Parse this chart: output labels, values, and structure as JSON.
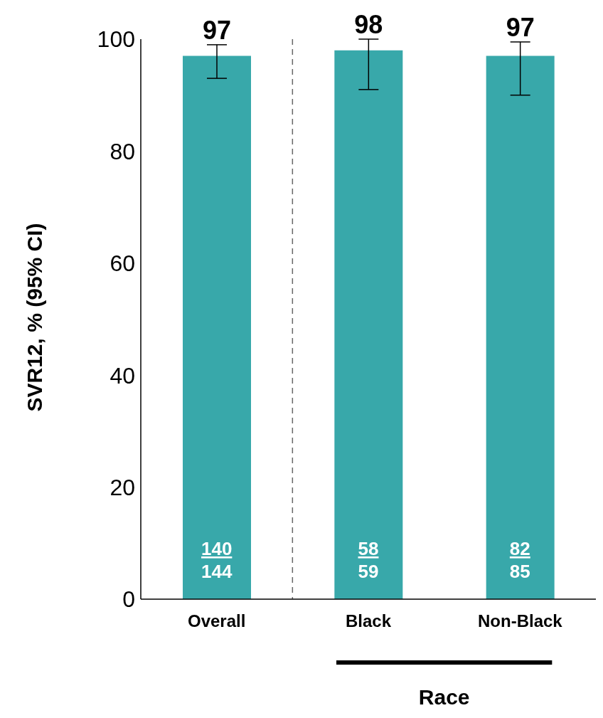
{
  "chart_data": {
    "type": "bar",
    "ylabel": "SVR12, % (95% CI)",
    "categories": [
      "Overall",
      "Black",
      "Non-Black"
    ],
    "values": [
      97,
      98,
      97
    ],
    "colors": [
      "#38a8aa",
      "#38a8aa",
      "#38a8aa"
    ],
    "errors": [
      [
        93,
        99
      ],
      [
        91,
        100
      ],
      [
        90,
        99.5
      ]
    ],
    "ylim": [
      0,
      100
    ],
    "yticks": [
      0,
      20,
      40,
      60,
      80,
      100
    ],
    "grid": false,
    "data_labels": true,
    "annotations": [
      "140",
      "144",
      "58",
      "59",
      "82",
      "85",
      "Race"
    ]
  }
}
